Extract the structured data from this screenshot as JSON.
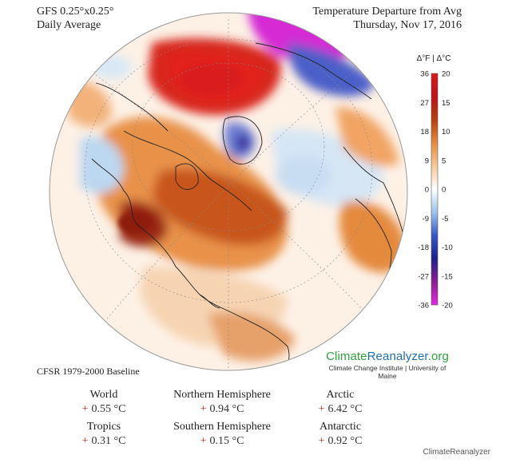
{
  "header": {
    "model": "GFS 0.25°x0.25°",
    "average": "Daily Average",
    "title": "Temperature Departure from Avg",
    "date": "Thursday, Nov 17, 2016"
  },
  "legend": {
    "title": "Δ°F | Δ°C",
    "fahrenheit_ticks": [
      "36",
      "27",
      "18",
      "9",
      "0",
      "-9",
      "-18",
      "-27",
      "-36"
    ],
    "celsius_ticks": [
      "20",
      "15",
      "10",
      "5",
      "0",
      "-5",
      "-10",
      "-15",
      "-20"
    ],
    "colors": [
      "#e02ae0",
      "#8a1e8f",
      "#1e1e8a",
      "#3559c4",
      "#9dc3ec",
      "#ffffff",
      "#f7c99a",
      "#e58b3d",
      "#b4410f",
      "#c0101a",
      "#d51a1a"
    ]
  },
  "baseline": "CFSR 1979-2000 Baseline",
  "branding": {
    "name_part1": "Climate",
    "name_part2": "Reanalyzer",
    "name_part3": ".org",
    "subtitle": "Climate Change Institute | University of Maine"
  },
  "stats": [
    {
      "label": "World",
      "value": "0.55 °C"
    },
    {
      "label": "Northern Hemisphere",
      "value": "0.94 °C"
    },
    {
      "label": "Arctic",
      "value": "6.42 °C"
    },
    {
      "label": "Tropics",
      "value": "0.31 °C"
    },
    {
      "label": "Southern Hemisphere",
      "value": "0.15 °C"
    },
    {
      "label": "Antarctic",
      "value": "0.92 °C"
    }
  ],
  "stat_sign": "+",
  "credit": "ClimateReanalyzer"
}
